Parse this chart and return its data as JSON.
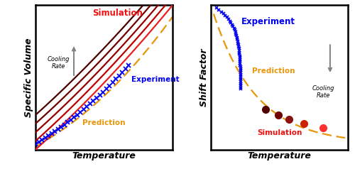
{
  "left_panel": {
    "xlabel": "Temperature",
    "ylabel": "Specific Volume",
    "sim_label": "Simulation",
    "exp_label": "Experiment",
    "pred_label": "Prediction",
    "cooling_label": "Cooling\nRate",
    "sim_colors": [
      "#4A0000",
      "#700000",
      "#920000",
      "#BE0000",
      "#E82020"
    ],
    "exp_color": "#0000EE",
    "pred_color": "#E8960A"
  },
  "right_panel": {
    "xlabel": "Temperature",
    "ylabel": "Shift Factor",
    "sim_label": "Simulation",
    "exp_label": "Experiment",
    "pred_label": "Prediction",
    "cooling_label": "Cooling\nRate",
    "sim_colors": [
      "#500000",
      "#700000",
      "#8B1010",
      "#CC2200",
      "#FF3030"
    ],
    "exp_color": "#0000EE",
    "pred_color": "#E8960A"
  },
  "bg_color": "#FFFFFF"
}
